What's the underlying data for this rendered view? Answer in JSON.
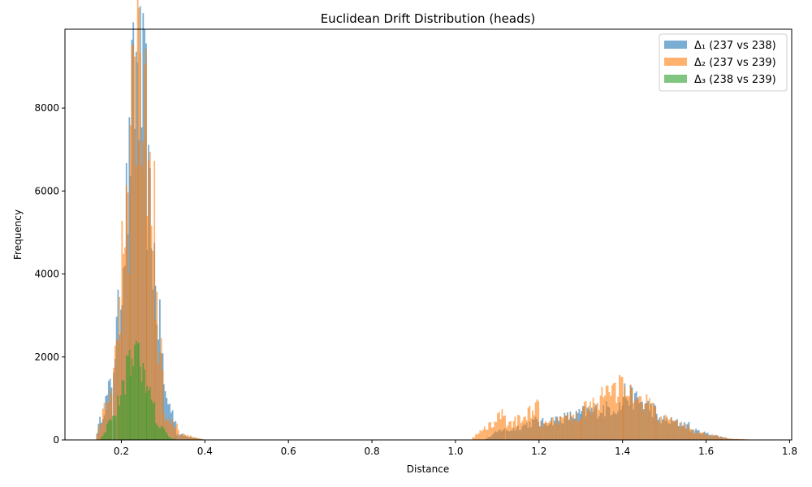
{
  "chart_data": {
    "type": "bar",
    "title": "Euclidean Drift Distribution (heads)",
    "xlabel": "Distance",
    "ylabel": "Frequency",
    "xlim": [
      0.065,
      1.805
    ],
    "ylim": [
      0,
      9900
    ],
    "xticks": [
      0.2,
      0.4,
      0.6,
      0.8,
      1.0,
      1.2,
      1.4,
      1.6,
      1.8
    ],
    "xtick_labels": [
      "0.2",
      "0.4",
      "0.6",
      "0.8",
      "1.0",
      "1.2",
      "1.4",
      "1.6",
      "1.8"
    ],
    "yticks": [
      0,
      2000,
      4000,
      6000,
      8000
    ],
    "ytick_labels": [
      "0",
      "2000",
      "4000",
      "6000",
      "8000"
    ],
    "grid": false,
    "legend_position": "top-right",
    "series": [
      {
        "name": "Δ₁ (237 vs 238)",
        "color": "#1f77b4",
        "opacity": 0.6,
        "bins": [
          [
            0.14,
            0.18,
            150,
            1450
          ],
          [
            0.18,
            0.2,
            1800,
            3600
          ],
          [
            0.2,
            0.22,
            4200,
            6500
          ],
          [
            0.22,
            0.24,
            7300,
            9200
          ],
          [
            0.24,
            0.26,
            8800,
            7600
          ],
          [
            0.26,
            0.28,
            6300,
            4100
          ],
          [
            0.28,
            0.3,
            3700,
            1900
          ],
          [
            0.3,
            0.33,
            1250,
            400
          ],
          [
            0.33,
            0.4,
            150,
            5
          ],
          [
            1.07,
            1.12,
            10,
            300
          ],
          [
            1.12,
            1.2,
            200,
            480
          ],
          [
            1.2,
            1.3,
            400,
            620
          ],
          [
            1.3,
            1.4,
            650,
            820
          ],
          [
            1.4,
            1.48,
            1150,
            700
          ],
          [
            1.48,
            1.56,
            520,
            350
          ],
          [
            1.56,
            1.65,
            250,
            40
          ],
          [
            1.65,
            1.7,
            30,
            5
          ]
        ]
      },
      {
        "name": "Δ₂ (237 vs 239)",
        "color": "#ff7f0e",
        "opacity": 0.6,
        "bins": [
          [
            0.14,
            0.18,
            100,
            1300
          ],
          [
            0.18,
            0.2,
            1650,
            3300
          ],
          [
            0.2,
            0.22,
            4000,
            5600
          ],
          [
            0.22,
            0.24,
            8100,
            9400
          ],
          [
            0.24,
            0.26,
            8500,
            7400
          ],
          [
            0.26,
            0.28,
            6000,
            5200
          ],
          [
            0.28,
            0.3,
            3200,
            1600
          ],
          [
            0.3,
            0.34,
            600,
            300
          ],
          [
            0.34,
            0.4,
            150,
            5
          ],
          [
            1.04,
            1.12,
            50,
            650
          ],
          [
            1.12,
            1.2,
            300,
            800
          ],
          [
            1.2,
            1.3,
            350,
            600
          ],
          [
            1.3,
            1.4,
            700,
            1300
          ],
          [
            1.4,
            1.48,
            1150,
            780
          ],
          [
            1.48,
            1.56,
            550,
            300
          ],
          [
            1.56,
            1.65,
            220,
            50
          ],
          [
            1.65,
            1.72,
            30,
            5
          ]
        ]
      },
      {
        "name": "Δ₃ (238 vs 239)",
        "color": "#2ca02c",
        "opacity": 0.6,
        "bins": [
          [
            0.15,
            0.19,
            30,
            700
          ],
          [
            0.19,
            0.22,
            900,
            1900
          ],
          [
            0.22,
            0.24,
            2100,
            2450
          ],
          [
            0.24,
            0.26,
            2000,
            1500
          ],
          [
            0.26,
            0.28,
            1200,
            700
          ],
          [
            0.28,
            0.31,
            450,
            150
          ],
          [
            0.31,
            0.33,
            80,
            10
          ]
        ]
      }
    ]
  }
}
